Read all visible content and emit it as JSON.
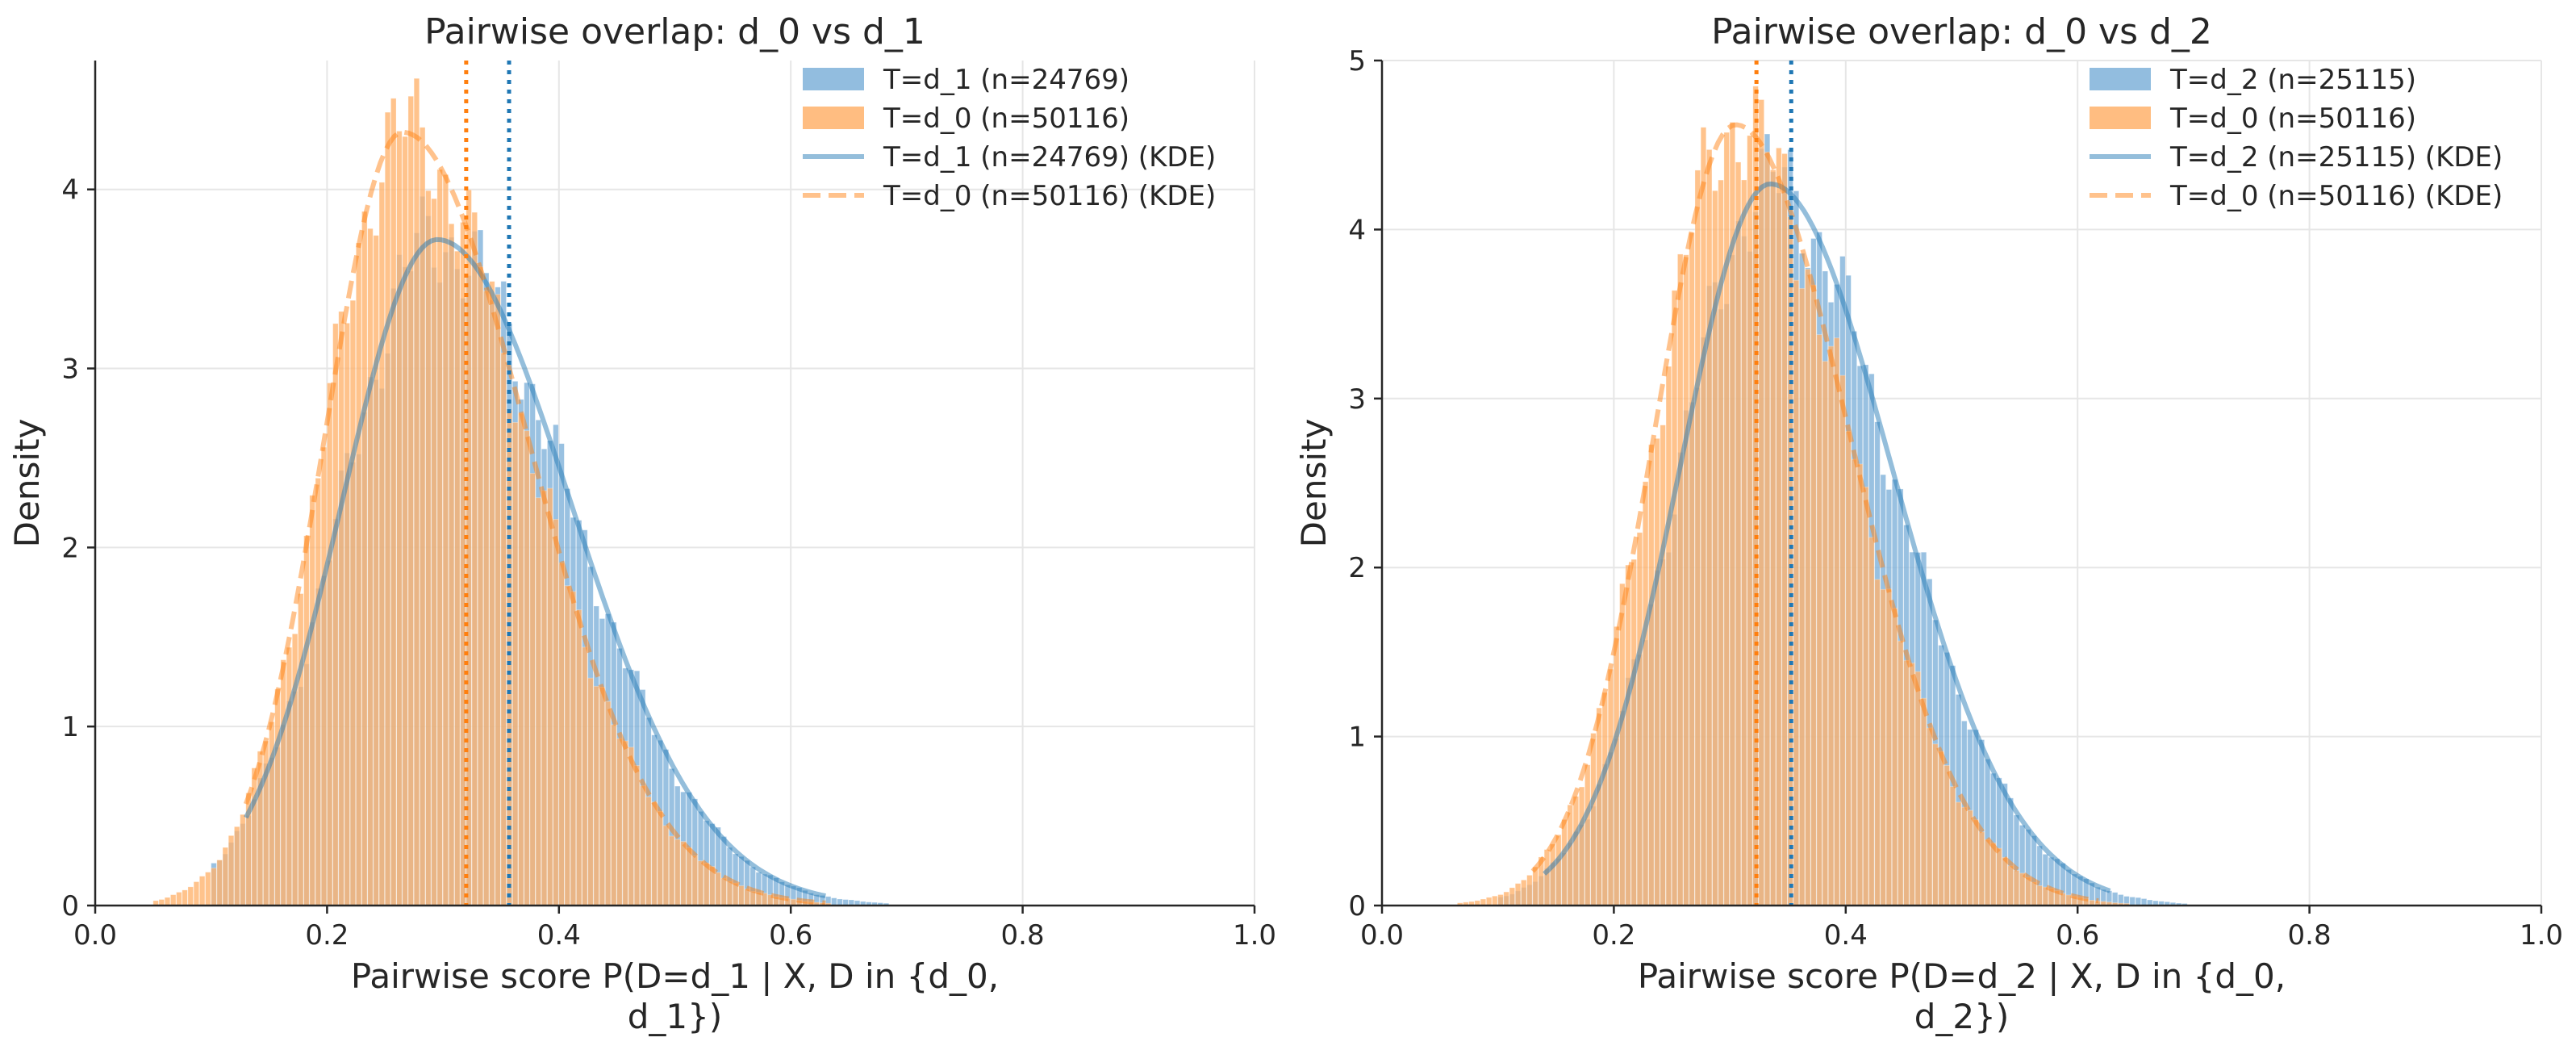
{
  "colors": {
    "blue": "#1f77b4",
    "orange": "#ff7f0e",
    "blue_fill": "#7fb1d9",
    "orange_fill": "#ffb26b",
    "grid": "#e6e6e6",
    "axis": "#262626"
  },
  "chart_data": [
    {
      "type": "histogram",
      "title": "Pairwise overlap: d_0 vs d_1",
      "xlabel_lines": [
        "Pairwise score P(D=d_1 | X, D in {d_0,",
        "d_1})"
      ],
      "ylabel": "Density",
      "xlim": [
        0.0,
        1.0
      ],
      "ylim": [
        0,
        4.72
      ],
      "xticks": [
        0.0,
        0.2,
        0.4,
        0.6,
        0.8,
        1.0
      ],
      "xtick_labels": [
        "0.0",
        "0.2",
        "0.4",
        "0.6",
        "0.8",
        "1.0"
      ],
      "yticks": [
        0,
        1,
        2,
        3,
        4
      ],
      "ytick_labels": [
        "0",
        "1",
        "2",
        "3",
        "4"
      ],
      "legend": [
        "T=d_1 (n=24769)",
        "T=d_0 (n=50116)",
        "T=d_1 (n=24769) (KDE)",
        "T=d_0 (n=50116) (KDE)"
      ],
      "series": [
        {
          "name": "T=d_1 (n=24769)",
          "color": "#1f77b4",
          "mode": 0.295,
          "sigma_left": 0.082,
          "sigma_right": 0.115,
          "peak": 3.72,
          "kde_min": 0.13,
          "kde_max": 0.63,
          "hist_range": [
            0.1,
            0.84
          ],
          "median": 0.357
        },
        {
          "name": "T=d_0 (n=50116)",
          "color": "#ff7f0e",
          "mode": 0.265,
          "sigma_left": 0.067,
          "sigma_right": 0.108,
          "peak": 4.32,
          "kde_min": 0.13,
          "kde_max": 0.63,
          "hist_range": [
            0.05,
            0.8
          ],
          "median": 0.32
        }
      ]
    },
    {
      "type": "histogram",
      "title": "Pairwise overlap: d_0 vs d_2",
      "xlabel_lines": [
        "Pairwise score P(D=d_2 | X, D in {d_0,",
        "d_2})"
      ],
      "ylabel": "Density",
      "xlim": [
        0.0,
        1.0
      ],
      "ylim": [
        0,
        5.0
      ],
      "xticks": [
        0.0,
        0.2,
        0.4,
        0.6,
        0.8,
        1.0
      ],
      "xtick_labels": [
        "0.0",
        "0.2",
        "0.4",
        "0.6",
        "0.8",
        "1.0"
      ],
      "yticks": [
        0,
        1,
        2,
        3,
        4,
        5
      ],
      "ytick_labels": [
        "0",
        "1",
        "2",
        "3",
        "4",
        "5"
      ],
      "legend": [
        "T=d_2 (n=25115)",
        "T=d_0 (n=50116)",
        "T=d_2 (n=25115) (KDE)",
        "T=d_0 (n=50116) (KDE)"
      ],
      "series": [
        {
          "name": "T=d_2 (n=25115)",
          "color": "#1f77b4",
          "mode": 0.335,
          "sigma_left": 0.078,
          "sigma_right": 0.105,
          "peak": 4.27,
          "kde_min": 0.14,
          "kde_max": 0.63,
          "hist_range": [
            0.1,
            0.82
          ],
          "median": 0.353
        },
        {
          "name": "T=d_0 (n=50116)",
          "color": "#ff7f0e",
          "mode": 0.305,
          "sigma_left": 0.07,
          "sigma_right": 0.098,
          "peak": 4.62,
          "kde_min": 0.13,
          "kde_max": 0.62,
          "hist_range": [
            0.05,
            0.78
          ],
          "median": 0.323
        }
      ]
    }
  ]
}
